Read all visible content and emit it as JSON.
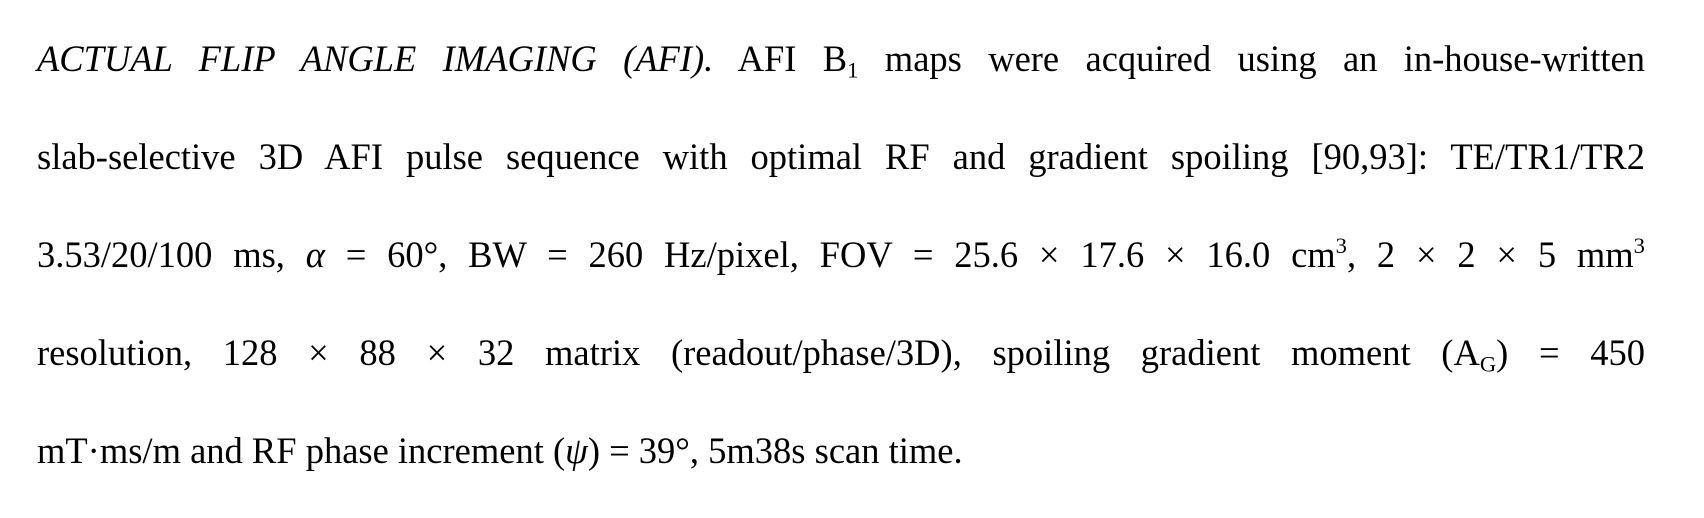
{
  "paragraph": {
    "heading": "ACTUAL FLIP ANGLE IMAGING (AFI).",
    "line1": {
      "a": "AFI B",
      "a_sub": "1",
      "b": " maps were acquired using an in-house-written"
    },
    "line2": "slab-selective 3D AFI pulse sequence with optimal RF and gradient spoiling [90,93]: TE/TR1/TR2",
    "line3": {
      "a": "3.53/20/100 ms, ",
      "alpha": "α",
      "b": " = 60°, BW = 260 Hz/pixel, FOV = 25.6 × 17.6 × 16.0 cm",
      "sup1": "3",
      "c": ", 2 × 2 × 5 mm",
      "sup2": "3"
    },
    "line4": {
      "a": "resolution, 128 × 88 × 32 matrix (readout/phase/3D), spoiling gradient moment (A",
      "a_sub": "G",
      "b": ") = 450"
    },
    "line5": {
      "a": "mT·ms/m and RF phase increment (",
      "psi": "ψ",
      "b": ") = 39°, 5m38s scan time."
    }
  }
}
